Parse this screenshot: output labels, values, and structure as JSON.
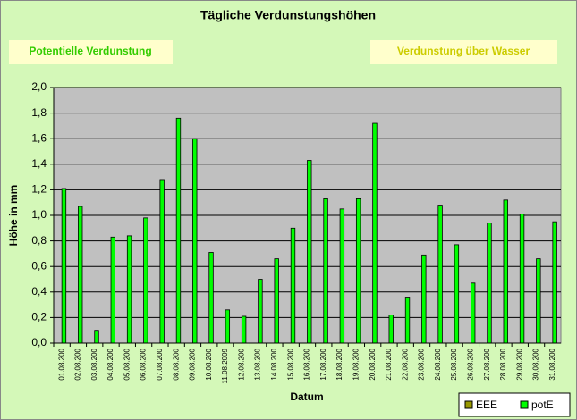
{
  "buttons": [
    "Potentielle Verdunstung",
    "Verdunstung über Wasser"
  ],
  "chart_data": {
    "type": "bar",
    "title": "Tägliche Verdunstungshöhen",
    "xlabel": "Datum",
    "ylabel": "Höhe in mm",
    "categories": [
      "01.08.200",
      "02.08.200",
      "03.08.200",
      "04.08.200",
      "05.08.200",
      "06.08.200",
      "07.08.200",
      "08.08.200",
      "09.08.200",
      "10.08.200",
      "11.08.2009",
      "12.08.200",
      "13.08.200",
      "14.08.200",
      "15.08.200",
      "16.08.200",
      "17.08.200",
      "18.08.200",
      "19.08.200",
      "20.08.200",
      "21.08.200",
      "22.08.200",
      "23.08.200",
      "24.08.200",
      "25.08.200",
      "26.08.200",
      "27.08.200",
      "28.08.200",
      "29.08.200",
      "30.08.200",
      "31.08.200"
    ],
    "series": [
      {
        "name": "EEE",
        "color": "#999900",
        "values": [
          null,
          null,
          null,
          null,
          null,
          null,
          null,
          null,
          null,
          null,
          null,
          null,
          null,
          null,
          null,
          null,
          null,
          null,
          null,
          null,
          null,
          null,
          null,
          null,
          null,
          null,
          null,
          null,
          null,
          null,
          null
        ]
      },
      {
        "name": "potE",
        "color": "#00ff00",
        "values": [
          1.21,
          1.07,
          0.1,
          0.83,
          0.84,
          0.98,
          1.28,
          1.76,
          1.6,
          0.71,
          0.26,
          0.21,
          0.5,
          0.66,
          0.9,
          1.43,
          1.13,
          1.05,
          1.13,
          1.72,
          0.22,
          0.36,
          0.69,
          1.08,
          0.77,
          0.47,
          0.94,
          1.12,
          1.01,
          0.66,
          0.95
        ]
      }
    ],
    "ylim": [
      0,
      2
    ],
    "yticks": [
      {
        "value": 0,
        "label": "0,0"
      },
      {
        "value": 0.2,
        "label": "0,2"
      },
      {
        "value": 0.4,
        "label": "0,4"
      },
      {
        "value": 0.6,
        "label": "0,6"
      },
      {
        "value": 0.8,
        "label": "0,8"
      },
      {
        "value": 1,
        "label": "1,0"
      },
      {
        "value": 1.2,
        "label": "1,2"
      },
      {
        "value": 1.4,
        "label": "1,4"
      },
      {
        "value": 1.6,
        "label": "1,6"
      },
      {
        "value": 1.8,
        "label": "1,8"
      },
      {
        "value": 2,
        "label": "2,0"
      }
    ],
    "grid": true,
    "legend": "bottom-right"
  }
}
